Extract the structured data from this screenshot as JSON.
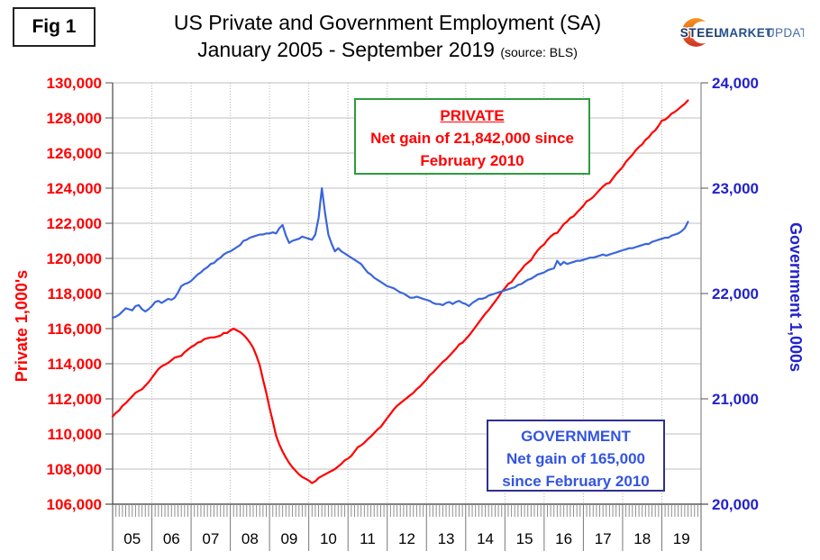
{
  "fig_label": "Fig 1",
  "title": {
    "line1": "US Private and Government Employment (SA)",
    "line2": "January 2005 - September 2019",
    "source": "(source: BLS)"
  },
  "logo": {
    "word1": "STEEL",
    "word2": "MARKET",
    "word3": "UPDATE"
  },
  "left_axis": {
    "title": "Private 1,000's",
    "color": "#ff0000",
    "min": 106000,
    "max": 130000,
    "step": 2000,
    "tick_labels": [
      "130,000",
      "128,000",
      "126,000",
      "124,000",
      "122,000",
      "120,000",
      "118,000",
      "116,000",
      "114,000",
      "112,000",
      "110,000",
      "108,000",
      "106,000"
    ]
  },
  "right_axis": {
    "title": "Government 1,000s",
    "color": "#2222cc",
    "min": 20000,
    "max": 24000,
    "step": 1000,
    "tick_labels": [
      "24,000",
      "23,000",
      "22,000",
      "21,000",
      "20,000"
    ]
  },
  "x_axis": {
    "years": [
      "05",
      "06",
      "07",
      "08",
      "09",
      "10",
      "11",
      "12",
      "13",
      "14",
      "15",
      "16",
      "17",
      "18",
      "19"
    ]
  },
  "annotations": {
    "private": {
      "title": "PRIVATE",
      "line2": "Net gain of 21,842,000 since",
      "line3": "February 2010",
      "border_color": "#2e9b3e",
      "text_color": "#ff0000"
    },
    "government": {
      "title": "GOVERNMENT",
      "line2": "Net gain of 165,000",
      "line3": "since February 2010",
      "border_color": "#2f2f8f",
      "text_color": "#3355e0"
    }
  },
  "chart_data": {
    "type": "line",
    "title": "US Private and Government Employment (SA)",
    "period": "January 2005 - September 2019",
    "frequency": "monthly",
    "x_start": "2005-01",
    "x_end": "2019-09",
    "grid": true,
    "left_axis_range": [
      106000,
      130000
    ],
    "right_axis_range": [
      20000,
      24000
    ],
    "series": [
      {
        "name": "Private",
        "axis": "left",
        "color": "#ff0000",
        "units": "thousands",
        "values": [
          111000,
          111200,
          111350,
          111600,
          111750,
          111950,
          112150,
          112350,
          112450,
          112550,
          112750,
          112950,
          113200,
          113450,
          113700,
          113850,
          113950,
          114050,
          114200,
          114350,
          114400,
          114450,
          114650,
          114800,
          114950,
          115050,
          115200,
          115250,
          115400,
          115450,
          115500,
          115500,
          115550,
          115600,
          115750,
          115750,
          115900,
          116000,
          115900,
          115800,
          115650,
          115450,
          115200,
          114900,
          114450,
          113900,
          113100,
          112350,
          111500,
          110700,
          109900,
          109400,
          109000,
          108650,
          108350,
          108100,
          107900,
          107700,
          107550,
          107450,
          107350,
          107200,
          107300,
          107500,
          107600,
          107700,
          107800,
          107900,
          108000,
          108150,
          108300,
          108500,
          108600,
          108750,
          109000,
          109250,
          109350,
          109500,
          109700,
          109850,
          110050,
          110250,
          110400,
          110650,
          110900,
          111150,
          111400,
          111600,
          111750,
          111900,
          112050,
          112200,
          112350,
          112550,
          112700,
          112900,
          113100,
          113350,
          113500,
          113700,
          113900,
          114100,
          114250,
          114450,
          114650,
          114850,
          115100,
          115200,
          115400,
          115600,
          115850,
          116100,
          116350,
          116600,
          116850,
          117050,
          117300,
          117550,
          117800,
          118100,
          118300,
          118550,
          118650,
          118900,
          119150,
          119350,
          119600,
          119750,
          119900,
          120200,
          120450,
          120650,
          120800,
          121050,
          121250,
          121400,
          121450,
          121700,
          121950,
          122100,
          122300,
          122400,
          122600,
          122800,
          123000,
          123250,
          123350,
          123500,
          123700,
          123900,
          124100,
          124250,
          124300,
          124550,
          124800,
          125000,
          125200,
          125500,
          125700,
          125900,
          126150,
          126350,
          126500,
          126750,
          126900,
          127150,
          127300,
          127550,
          127850,
          127900,
          128050,
          128250,
          128350,
          128500,
          128650,
          128800,
          129000
        ]
      },
      {
        "name": "Government",
        "axis": "right",
        "color": "#3a66db",
        "units": "thousands",
        "values": [
          21770,
          21780,
          21800,
          21830,
          21860,
          21850,
          21840,
          21880,
          21890,
          21850,
          21830,
          21850,
          21880,
          21920,
          21930,
          21910,
          21930,
          21950,
          21940,
          21960,
          22010,
          22070,
          22090,
          22100,
          22120,
          22150,
          22180,
          22200,
          22230,
          22250,
          22280,
          22290,
          22320,
          22340,
          22370,
          22390,
          22400,
          22420,
          22440,
          22460,
          22500,
          22510,
          22530,
          22540,
          22550,
          22560,
          22560,
          22570,
          22570,
          22580,
          22570,
          22620,
          22650,
          22550,
          22480,
          22500,
          22510,
          22520,
          22540,
          22530,
          22520,
          22510,
          22560,
          22720,
          23000,
          22760,
          22560,
          22470,
          22400,
          22430,
          22400,
          22380,
          22360,
          22340,
          22320,
          22300,
          22280,
          22240,
          22200,
          22180,
          22150,
          22130,
          22110,
          22090,
          22070,
          22060,
          22050,
          22030,
          22010,
          22000,
          21980,
          21960,
          21960,
          21970,
          21960,
          21950,
          21940,
          21930,
          21910,
          21900,
          21900,
          21890,
          21910,
          21920,
          21900,
          21920,
          21930,
          21910,
          21900,
          21880,
          21910,
          21930,
          21950,
          21950,
          21960,
          21980,
          21990,
          22000,
          22010,
          22020,
          22030,
          22040,
          22050,
          22060,
          22080,
          22090,
          22110,
          22130,
          22140,
          22160,
          22180,
          22190,
          22200,
          22220,
          22230,
          22240,
          22310,
          22270,
          22300,
          22280,
          22290,
          22300,
          22310,
          22310,
          22320,
          22330,
          22340,
          22340,
          22350,
          22360,
          22370,
          22360,
          22370,
          22380,
          22390,
          22400,
          22410,
          22420,
          22430,
          22430,
          22440,
          22450,
          22460,
          22470,
          22470,
          22490,
          22500,
          22510,
          22520,
          22530,
          22530,
          22550,
          22560,
          22570,
          22590,
          22620,
          22680
        ]
      }
    ]
  }
}
